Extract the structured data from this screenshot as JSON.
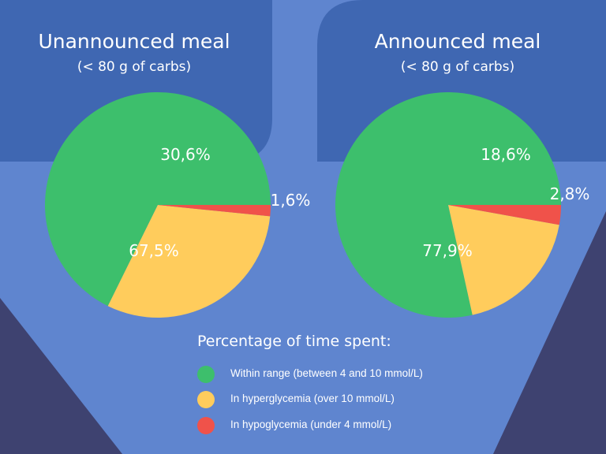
{
  "chart_data": [
    {
      "type": "pie",
      "title": "Unannounced meal",
      "subtitle": "(< 80 g of carbs)",
      "slices": [
        {
          "label": "67,5%",
          "value": 67.5,
          "category": "Within range (between 4 and 10 mmol/L)",
          "color": "#3dbf6c"
        },
        {
          "label": "30,6%",
          "value": 30.6,
          "category": "In hyperglycemia  (over 10 mmol/L)",
          "color": "#ffcc5c"
        },
        {
          "label": "1,6%",
          "value": 1.6,
          "category": "In hypoglycemia (under 4 mmol/L)",
          "color": "#f0524a"
        }
      ]
    },
    {
      "type": "pie",
      "title": "Announced meal",
      "subtitle": "(< 80 g of carbs)",
      "slices": [
        {
          "label": "77,9%",
          "value": 77.9,
          "category": "Within range (between 4 and 10 mmol/L)",
          "color": "#3dbf6c"
        },
        {
          "label": "18,6%",
          "value": 18.6,
          "category": "In hyperglycemia  (over 10 mmol/L)",
          "color": "#ffcc5c"
        },
        {
          "label": "2,8%",
          "value": 2.8,
          "category": "In hypoglycemia (under 4 mmol/L)",
          "color": "#f0524a"
        }
      ]
    }
  ],
  "legend": {
    "title": "Percentage of time spent:",
    "items": [
      {
        "label": "Within range (between 4 and 10 mmol/L)",
        "color": "#3dbf6c"
      },
      {
        "label": "In hyperglycemia  (over 10 mmol/L)",
        "color": "#ffcc5c"
      },
      {
        "label": "In hypoglycemia (under 4 mmol/L)",
        "color": "#f0524a"
      }
    ]
  },
  "colors": {
    "background": "#5f85cf",
    "panel": "#3f67b2",
    "dark_shape": "#3e4270",
    "label_text": "#ffffff"
  }
}
